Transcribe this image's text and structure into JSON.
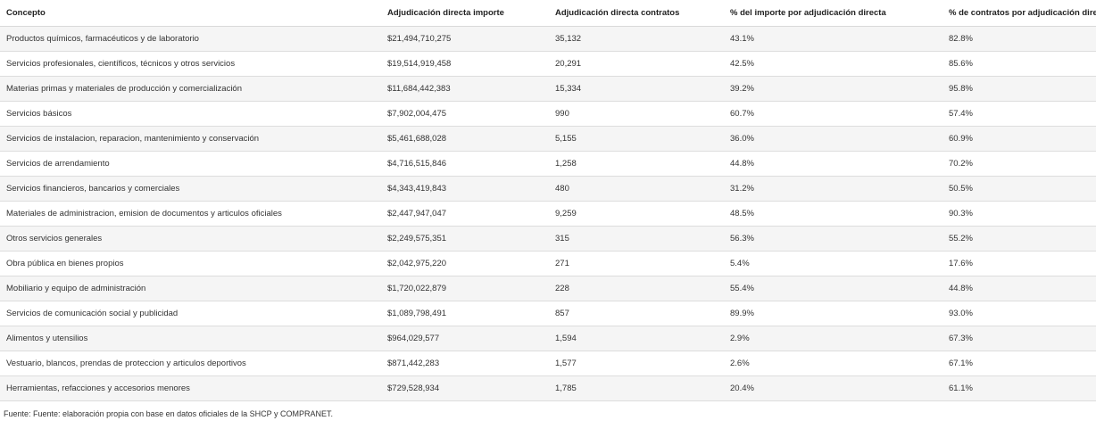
{
  "table": {
    "headers": [
      "Concepto",
      "Adjudicación directa importe",
      "Adjudicación directa contratos",
      "% del importe por adjudicación directa",
      "% de contratos por adjudicación directa"
    ],
    "rows": [
      [
        "Productos químicos, farmacéuticos y de laboratorio",
        "$21,494,710,275",
        "35,132",
        "43.1%",
        "82.8%"
      ],
      [
        "Servicios profesionales, científicos, técnicos y otros servicios",
        "$19,514,919,458",
        "20,291",
        "42.5%",
        "85.6%"
      ],
      [
        "Materias primas y materiales de producción y comercialización",
        "$11,684,442,383",
        "15,334",
        "39.2%",
        "95.8%"
      ],
      [
        "Servicios básicos",
        "$7,902,004,475",
        "990",
        "60.7%",
        "57.4%"
      ],
      [
        "Servicios de instalacion, reparacion, mantenimiento y conservación",
        "$5,461,688,028",
        "5,155",
        "36.0%",
        "60.9%"
      ],
      [
        "Servicios de arrendamiento",
        "$4,716,515,846",
        "1,258",
        "44.8%",
        "70.2%"
      ],
      [
        "Servicios financieros, bancarios y comerciales",
        "$4,343,419,843",
        "480",
        "31.2%",
        "50.5%"
      ],
      [
        "Materiales de administracion, emision de documentos y articulos oficiales",
        "$2,447,947,047",
        "9,259",
        "48.5%",
        "90.3%"
      ],
      [
        "Otros servicios generales",
        "$2,249,575,351",
        "315",
        "56.3%",
        "55.2%"
      ],
      [
        "Obra pública en bienes propios",
        "$2,042,975,220",
        "271",
        "5.4%",
        "17.6%"
      ],
      [
        "Mobiliario y equipo de administración",
        "$1,720,022,879",
        "228",
        "55.4%",
        "44.8%"
      ],
      [
        "Servicios de comunicación social y publicidad",
        "$1,089,798,491",
        "857",
        "89.9%",
        "93.0%"
      ],
      [
        "Alimentos y utensilios",
        "$964,029,577",
        "1,594",
        "2.9%",
        "67.3%"
      ],
      [
        "Vestuario, blancos, prendas de proteccion y articulos deportivos",
        "$871,442,283",
        "1,577",
        "2.6%",
        "67.1%"
      ],
      [
        "Herramientas, refacciones y accesorios menores",
        "$729,528,934",
        "1,785",
        "20.4%",
        "61.1%"
      ]
    ]
  },
  "source": "Fuente: Fuente: elaboración propia con base en datos oficiales de la SHCP y COMPRANET."
}
